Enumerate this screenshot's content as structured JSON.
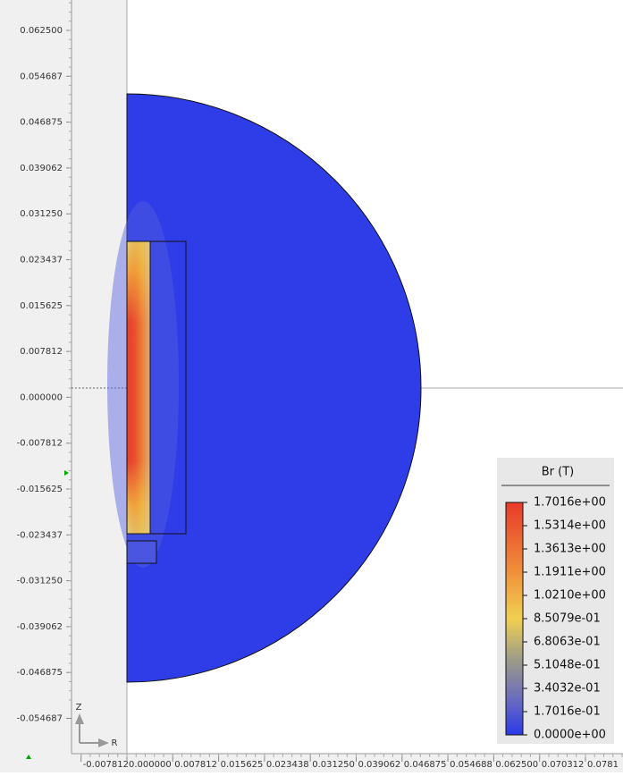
{
  "rulers": {
    "y_ticks": [
      "0.062500",
      "0.054687",
      "0.046875",
      "0.039062",
      "0.031250",
      "0.023437",
      "0.015625",
      "0.007812",
      "0.000000",
      "-0.007812",
      "-0.015625",
      "-0.023437",
      "-0.031250",
      "-0.039062",
      "-0.046875",
      "-0.054687"
    ],
    "x_ticks": [
      "-0.007812",
      "0.000000",
      "0.007812",
      "0.015625",
      "0.023438",
      "0.031250",
      "0.039062",
      "0.046875",
      "0.054688",
      "0.062500",
      "0.070312",
      "0.0781"
    ]
  },
  "axis_icon": {
    "z": "Z",
    "r": "R"
  },
  "legend": {
    "title": "Br (T)",
    "labels": [
      "1.7016e+00",
      "1.5314e+00",
      "1.3613e+00",
      "1.1911e+00",
      "1.0210e+00",
      "8.5079e-01",
      "6.8063e-01",
      "5.1048e-01",
      "3.4032e-01",
      "1.7016e-01",
      "0.0000e+00"
    ]
  }
}
